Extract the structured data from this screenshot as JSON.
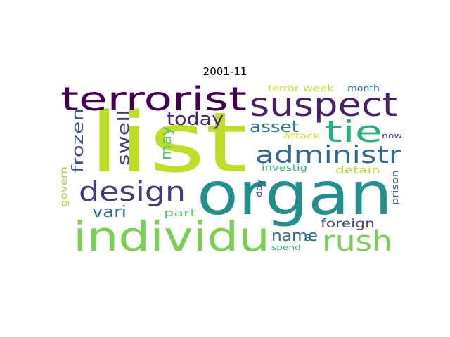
{
  "title": "2001-11",
  "words": [
    {
      "text": "list",
      "color": "#bddf26"
    },
    {
      "text": "organ",
      "color": "#21908d"
    },
    {
      "text": "individu",
      "color": "#7ad151"
    },
    {
      "text": "terrorist",
      "color": "#440154"
    },
    {
      "text": "suspect",
      "color": "#481f70"
    },
    {
      "text": "tie",
      "color": "#29af7f"
    },
    {
      "text": "administr",
      "color": "#31688e"
    },
    {
      "text": "design",
      "color": "#443983"
    },
    {
      "text": "rush",
      "color": "#7ad151"
    },
    {
      "text": "today",
      "color": "#482475"
    },
    {
      "text": "asset",
      "color": "#2a788e"
    },
    {
      "text": "swell",
      "color": "#443983"
    },
    {
      "text": "frozen",
      "color": "#3b528b"
    },
    {
      "text": "may",
      "color": "#52c569"
    },
    {
      "text": "vari",
      "color": "#2c728e"
    },
    {
      "text": "name",
      "color": "#2e6e8e"
    },
    {
      "text": "foreign",
      "color": "#3e4989"
    },
    {
      "text": "detain",
      "color": "#bddf26"
    },
    {
      "text": "part",
      "color": "#5ec962"
    },
    {
      "text": "govern",
      "color": "#a5db36"
    },
    {
      "text": "terror",
      "color": "#d2e21b"
    },
    {
      "text": "week",
      "color": "#c2df23"
    },
    {
      "text": "month",
      "color": "#287d8e"
    },
    {
      "text": "attack",
      "color": "#d8e219"
    },
    {
      "text": "now",
      "color": "#3e4989"
    },
    {
      "text": "investig",
      "color": "#35b779"
    },
    {
      "text": "day",
      "color": "#3e4989"
    },
    {
      "text": "prison",
      "color": "#38598c"
    },
    {
      "text": "spend",
      "color": "#2fb47c"
    },
    {
      "text": "s",
      "color": "#2d708e"
    }
  ]
}
